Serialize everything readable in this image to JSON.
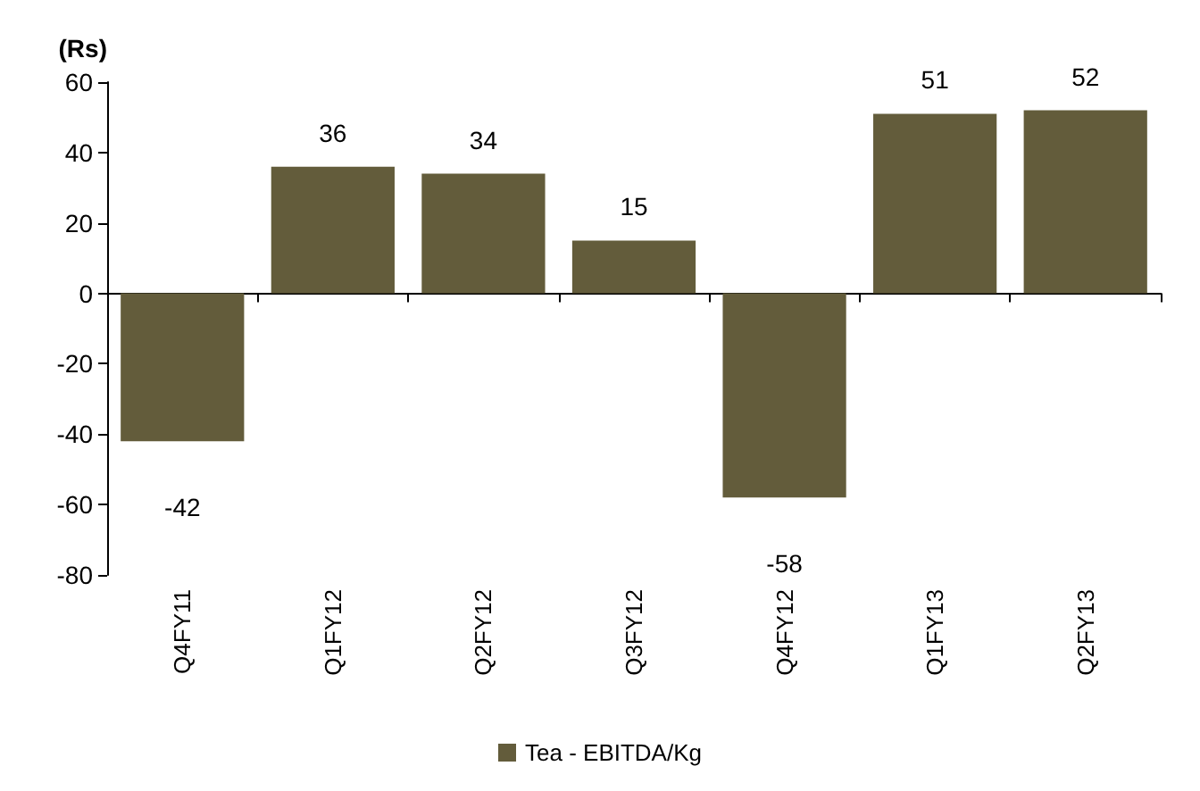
{
  "chart_data": {
    "type": "bar",
    "ylabel": "(Rs)",
    "categories": [
      "Q4FY11",
      "Q1FY12",
      "Q2FY12",
      "Q3FY12",
      "Q4FY12",
      "Q1FY13",
      "Q2FY13"
    ],
    "series": [
      {
        "name": "Tea - EBITDA/Kg",
        "color": "#635c3b",
        "values": [
          -42,
          36,
          34,
          15,
          -58,
          51,
          52
        ]
      }
    ],
    "ylim": [
      -80,
      60
    ],
    "yticks": [
      -80,
      -60,
      -40,
      -20,
      0,
      20,
      40,
      60
    ],
    "legend": "bottom",
    "data_labels": true
  }
}
